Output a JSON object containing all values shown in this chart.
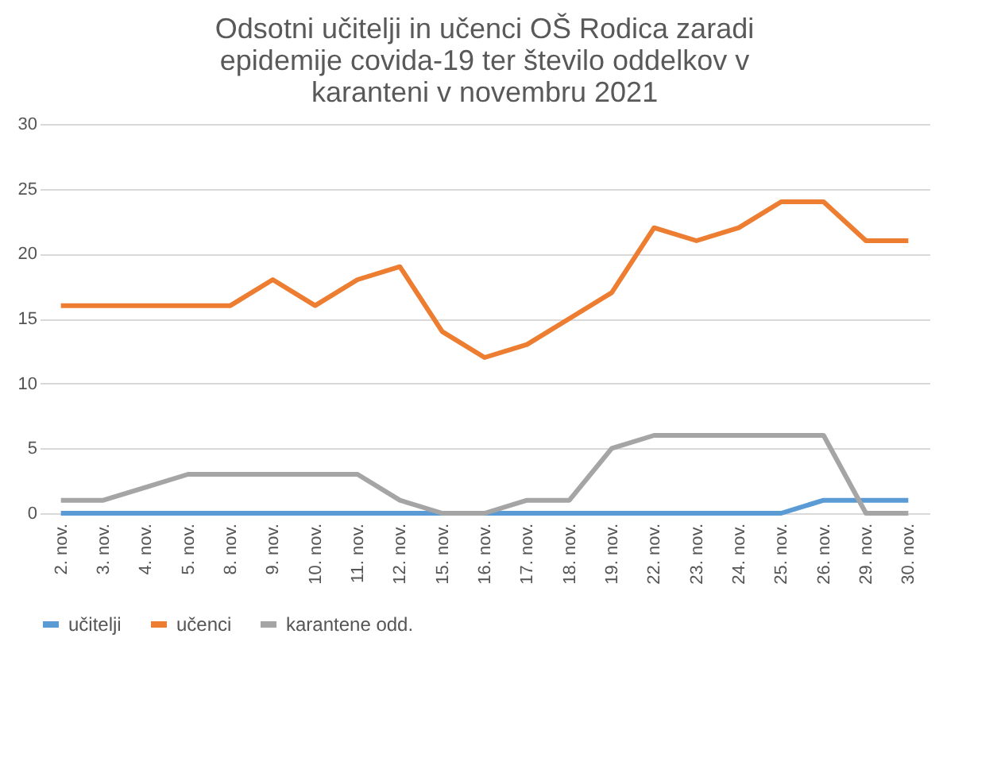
{
  "chart_data": {
    "type": "line",
    "title": [
      "Odsotni učitelji in učenci OŠ Rodica zaradi",
      "epidemije covida-19 ter število oddelkov v",
      "karanteni v novembru 2021"
    ],
    "categories": [
      "2. nov.",
      "3. nov.",
      "4. nov.",
      "5. nov.",
      "8. nov.",
      "9. nov.",
      "10. nov.",
      "11. nov.",
      "12. nov.",
      "15. nov.",
      "16. nov.",
      "17. nov.",
      "18. nov.",
      "19. nov.",
      "22. nov.",
      "23. nov.",
      "24. nov.",
      "25. nov.",
      "26. nov.",
      "29. nov.",
      "30. nov."
    ],
    "series": [
      {
        "name": "učitelji",
        "color": "#5b9bd5",
        "values": [
          0,
          0,
          0,
          0,
          0,
          0,
          0,
          0,
          0,
          0,
          0,
          0,
          0,
          0,
          0,
          0,
          0,
          0,
          1,
          1,
          1
        ]
      },
      {
        "name": "učenci",
        "color": "#ed7d31",
        "values": [
          16,
          16,
          16,
          16,
          16,
          18,
          16,
          18,
          19,
          14,
          12,
          13,
          15,
          17,
          22,
          21,
          22,
          24,
          24,
          21,
          21
        ]
      },
      {
        "name": "karantene odd.",
        "color": "#a5a5a5",
        "values": [
          1,
          1,
          2,
          3,
          3,
          3,
          3,
          3,
          1,
          0,
          0,
          1,
          1,
          5,
          6,
          6,
          6,
          6,
          6,
          0,
          0
        ]
      }
    ],
    "ylim": [
      0,
      30
    ],
    "yticks": [
      0,
      5,
      10,
      15,
      20,
      25,
      30
    ],
    "grid": "y",
    "legend": "bottom",
    "marker": "none",
    "line_style": "solid"
  }
}
